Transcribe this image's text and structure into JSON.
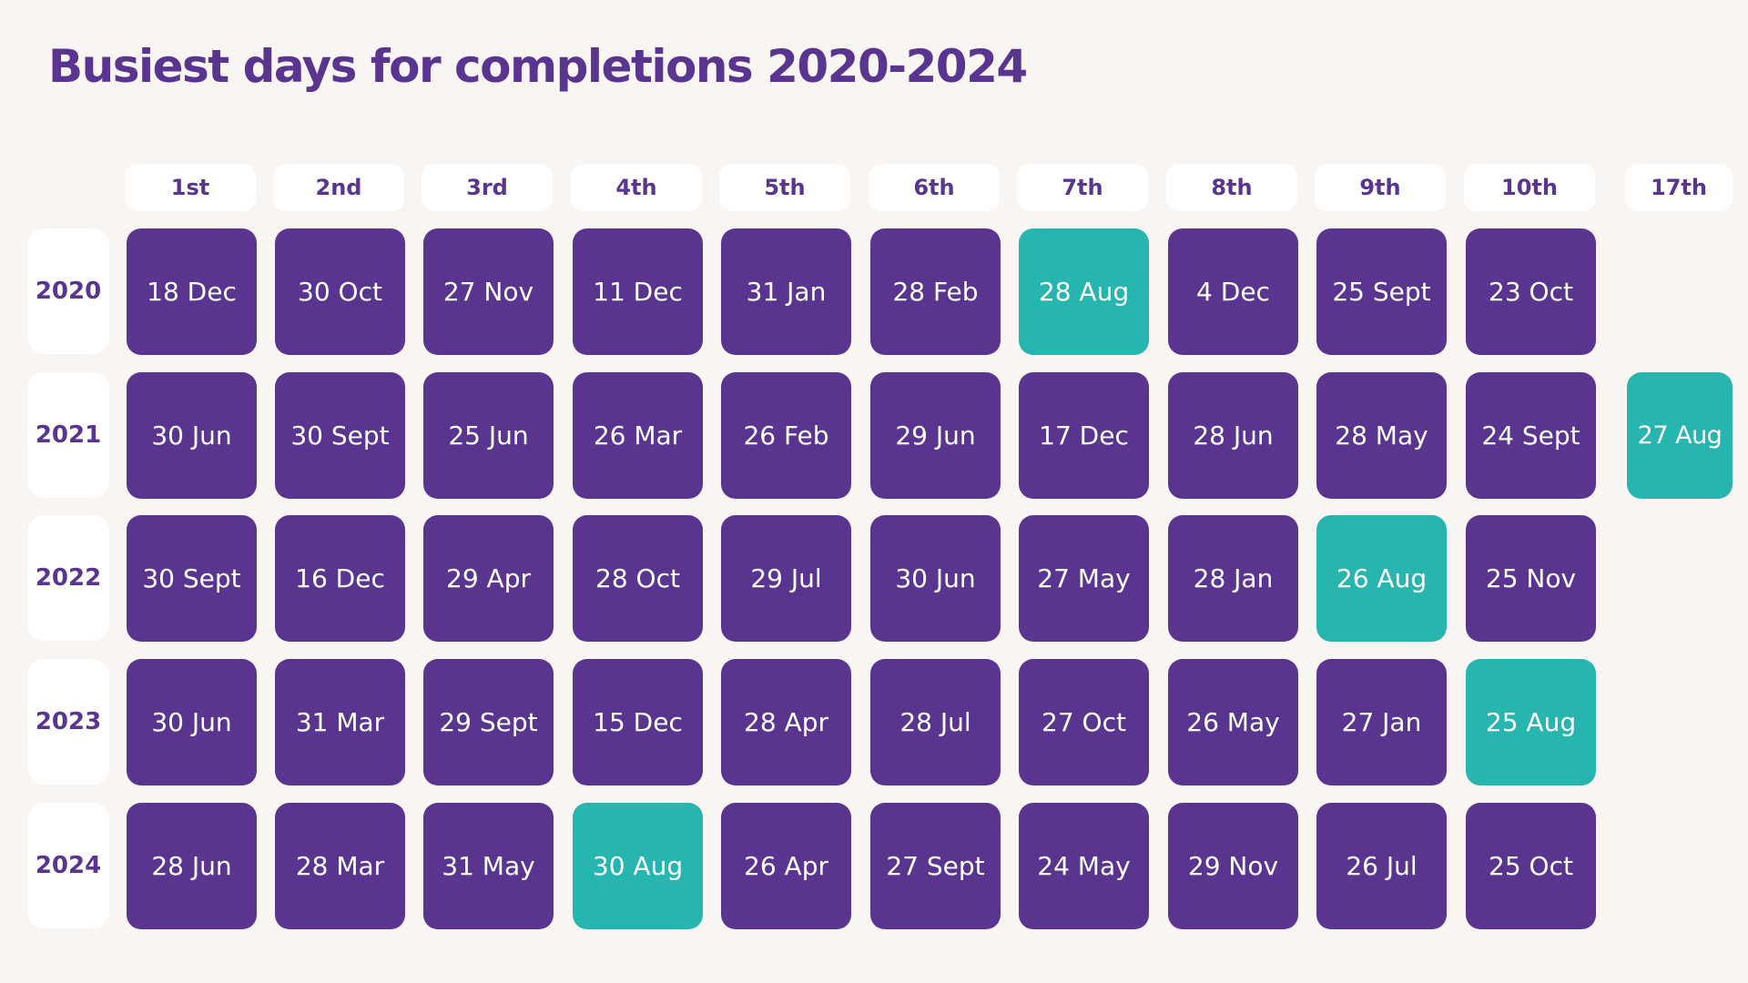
{
  "title": "Busiest days for completions 2020-2024",
  "colors": {
    "default": "#5a3590",
    "highlight": "#27b5b0"
  },
  "chart_data": {
    "type": "table",
    "title": "Busiest days for completions 2020-2024",
    "columns": [
      "1st",
      "2nd",
      "3rd",
      "4th",
      "5th",
      "6th",
      "7th",
      "8th",
      "9th",
      "10th",
      "17th"
    ],
    "rows": [
      {
        "year": "2020",
        "days": [
          "18 Dec",
          "30 Oct",
          "27 Nov",
          "11 Dec",
          "31 Jan",
          "28 Feb",
          "28 Aug",
          "4 Dec",
          "25 Sept",
          "23 Oct",
          ""
        ],
        "highlight": [
          6
        ]
      },
      {
        "year": "2021",
        "days": [
          "30 Jun",
          "30 Sept",
          "25 Jun",
          "26 Mar",
          "26 Feb",
          "29 Jun",
          "17 Dec",
          "28 Jun",
          "28 May",
          "24 Sept",
          "27 Aug"
        ],
        "highlight": [
          10
        ]
      },
      {
        "year": "2022",
        "days": [
          "30 Sept",
          "16 Dec",
          "29 Apr",
          "28 Oct",
          "29 Jul",
          "30 Jun",
          "27 May",
          "28 Jan",
          "26 Aug",
          "25 Nov",
          ""
        ],
        "highlight": [
          8
        ]
      },
      {
        "year": "2023",
        "days": [
          "30 Jun",
          "31 Mar",
          "29 Sept",
          "15 Dec",
          "28 Apr",
          "28 Jul",
          "27 Oct",
          "26 May",
          "27 Jan",
          "25 Aug",
          ""
        ],
        "highlight": [
          9
        ]
      },
      {
        "year": "2024",
        "days": [
          "28 Jun",
          "28 Mar",
          "31 May",
          "30 Aug",
          "26 Apr",
          "27 Sept",
          "24 May",
          "29 Nov",
          "26 Jul",
          "25 Oct",
          ""
        ],
        "highlight": [
          3
        ]
      }
    ]
  }
}
